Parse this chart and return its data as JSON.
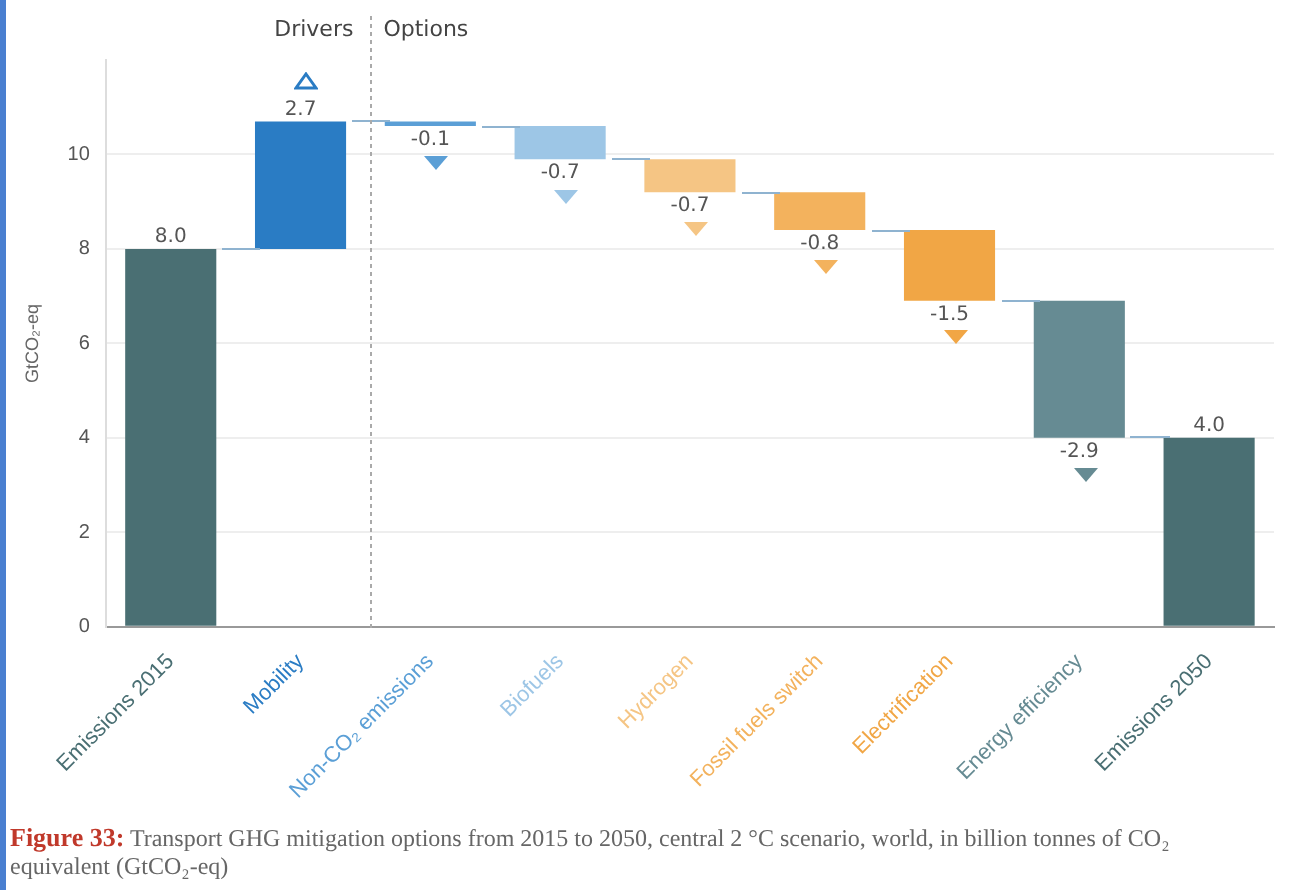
{
  "chart_data": {
    "type": "bar",
    "ylabel": "GtCO₂-eq",
    "categories": [
      "Emissions 2015",
      "Mobility",
      "Non-CO₂ emissions",
      "Biofuels",
      "Hydrogen",
      "Fossil fuels switch",
      "Electrification",
      "Energy efficiency",
      "Emissions 2050"
    ],
    "base": [
      0,
      8.0,
      10.7,
      10.6,
      9.9,
      9.2,
      8.4,
      6.9,
      0
    ],
    "values": [
      8.0,
      2.7,
      -0.1,
      -0.7,
      -0.7,
      -0.8,
      -1.5,
      -2.9,
      4.0
    ],
    "colors": [
      "#4a6f73",
      "#2a7cc4",
      "#5b9fd6",
      "#9dc6e6",
      "#f5c584",
      "#f3b25d",
      "#f1a645",
      "#668b93",
      "#4a6f73"
    ],
    "value_labels": [
      "8.0",
      "2.7",
      "-0.1",
      "-0.7",
      "-0.7",
      "-0.8",
      "-1.5",
      "-2.9",
      "4.0"
    ],
    "ylim": [
      0,
      12
    ],
    "yticks": [
      0,
      2,
      4,
      6,
      8,
      10
    ],
    "grid": "y",
    "annotations": [
      "Drivers",
      "Options",
      "Figure 33:",
      "Transport GHG mitigation options from 2015 to 2050, central 2 °C scenario, world, in billion tonnes of CO₂ equivalent (GtCO₂-eq)"
    ]
  }
}
